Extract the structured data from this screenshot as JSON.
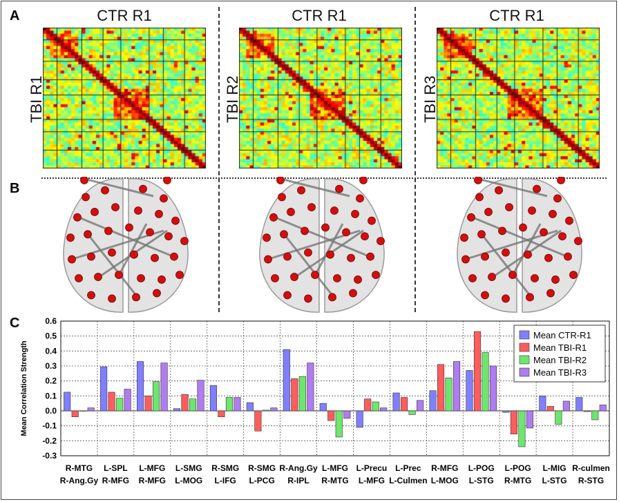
{
  "panel_labels": [
    "A",
    "B",
    "C"
  ],
  "matrices": [
    {
      "title": "CTR R1",
      "side_label": "TBI R1"
    },
    {
      "title": "CTR R1",
      "side_label": "TBI R2"
    },
    {
      "title": "CTR R1",
      "side_label": "TBI R3"
    }
  ],
  "colors": {
    "ctr": "#7f7fff",
    "tbi1": "#ff5c5c",
    "tbi2": "#6ee66e",
    "tbi3": "#b07cf0",
    "node": "#d01010"
  },
  "chart_data": {
    "type": "bar",
    "ylabel": "Mean Correlation Strength",
    "ylim": [
      -0.3,
      0.6
    ],
    "yticks": [
      "0.6",
      "0.5",
      "0.4",
      "0.3",
      "0.2",
      "0.1",
      "0.0",
      "-0.1",
      "-0.2",
      "-0.3"
    ],
    "grid": true,
    "legend_position": "top-right",
    "categories": [
      [
        "R-MTG",
        "R-Ang.Gy"
      ],
      [
        "L-SPL",
        "R-MFG"
      ],
      [
        "L-MFG",
        "R-MFG"
      ],
      [
        "L-SMG",
        "L-MOG"
      ],
      [
        "R-SMG",
        "L-IFG"
      ],
      [
        "R-SMG",
        "L-PCG"
      ],
      [
        "R-Ang.Gy",
        "R-IPL"
      ],
      [
        "L-MFG",
        "R-MTG"
      ],
      [
        "L-Precu",
        "L-MFG"
      ],
      [
        "L-Prec",
        "L-Culmen"
      ],
      [
        "R-MFG",
        "L-MOG"
      ],
      [
        "L-POG",
        "L-STG"
      ],
      [
        "L-POG",
        "R-MTG"
      ],
      [
        "L-MIG",
        "L-STG"
      ],
      [
        "R-culmen",
        "R-STG"
      ]
    ],
    "series": [
      {
        "name": "Mean CTR-R1",
        "values": [
          0.125,
          0.295,
          0.33,
          0.015,
          0.17,
          0.055,
          0.41,
          0.05,
          -0.11,
          0.12,
          0.135,
          0.27,
          -0.01,
          0.1,
          0.09
        ]
      },
      {
        "name": "Mean TBI-R1",
        "values": [
          -0.04,
          0.125,
          0.1,
          0.11,
          -0.04,
          -0.135,
          0.215,
          -0.065,
          0.08,
          0.09,
          0.31,
          0.53,
          -0.155,
          0.03,
          -0.005
        ]
      },
      {
        "name": "Mean TBI-R2",
        "values": [
          0.0,
          0.085,
          0.195,
          0.08,
          0.09,
          0.005,
          0.23,
          -0.175,
          0.06,
          -0.025,
          0.22,
          0.39,
          -0.24,
          -0.09,
          -0.06
        ]
      },
      {
        "name": "Mean TBI-R3",
        "values": [
          0.02,
          0.145,
          0.32,
          0.205,
          0.09,
          0.02,
          0.32,
          -0.05,
          0.02,
          0.07,
          0.33,
          0.3,
          -0.115,
          0.065,
          0.04
        ]
      }
    ]
  }
}
